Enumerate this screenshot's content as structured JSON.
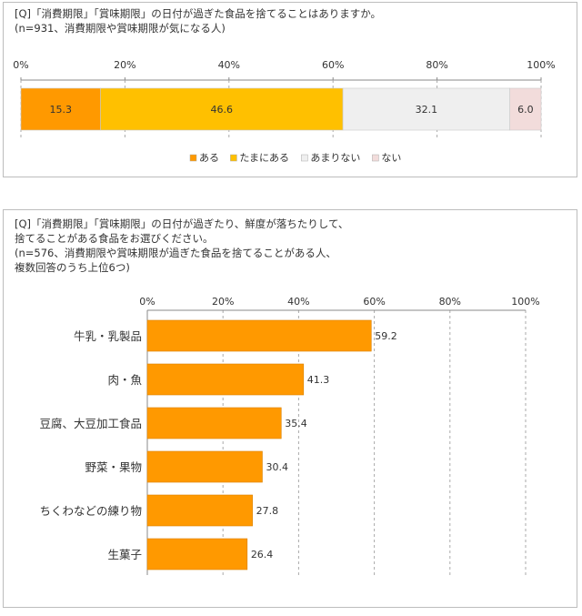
{
  "colors": {
    "aru": "#ff9900",
    "tamani": "#ffc000",
    "amari": "#efefef",
    "nai": "#f2dcdb",
    "bar": "#ff9900",
    "border": "#bdbdbd",
    "grid": "#888888"
  },
  "panel1": {
    "question": "[Q]「消費期限」「賞味期限」の日付が過ぎた食品を捨てることはありますか。",
    "note": "(n=931、消費期限や賞味期限が気になる人)"
  },
  "panel2": {
    "question_line1": "[Q]「消費期限」「賞味期限」の日付が過ぎたり、鮮度が落ちたりして、",
    "question_line2": "捨てることがある食品をお選びください。",
    "note_line1": "(n=576、消費期限や賞味期限が過ぎた食品を捨てることがある人、",
    "note_line2": "複数回答のうち上位6つ)"
  },
  "chart_data": [
    {
      "type": "bar",
      "orientation": "horizontal-stacked-100",
      "ticks": [
        "0%",
        "20%",
        "40%",
        "60%",
        "80%",
        "100%"
      ],
      "xlim": [
        0,
        100
      ],
      "series": [
        {
          "name": "ある",
          "values": [
            15.3
          ],
          "labels": [
            "15.3"
          ]
        },
        {
          "name": "たまにある",
          "values": [
            46.6
          ],
          "labels": [
            "46.6"
          ]
        },
        {
          "name": "あまりない",
          "values": [
            32.1
          ],
          "labels": [
            "32.1"
          ]
        },
        {
          "name": "ない",
          "values": [
            6.0
          ],
          "labels": [
            "6.0"
          ]
        }
      ],
      "legend_position": "bottom"
    },
    {
      "type": "bar",
      "orientation": "horizontal",
      "ticks": [
        "0%",
        "20%",
        "40%",
        "60%",
        "80%",
        "100%"
      ],
      "xlim": [
        0,
        100
      ],
      "categories": [
        "牛乳・乳製品",
        "肉・魚",
        "豆腐、大豆加工食品",
        "野菜・果物",
        "ちくわなどの練り物",
        "生菓子"
      ],
      "values": [
        59.2,
        41.3,
        35.4,
        30.4,
        27.8,
        26.4
      ],
      "labels": [
        "59.2",
        "41.3",
        "35.4",
        "30.4",
        "27.8",
        "26.4"
      ],
      "grid": true
    }
  ]
}
